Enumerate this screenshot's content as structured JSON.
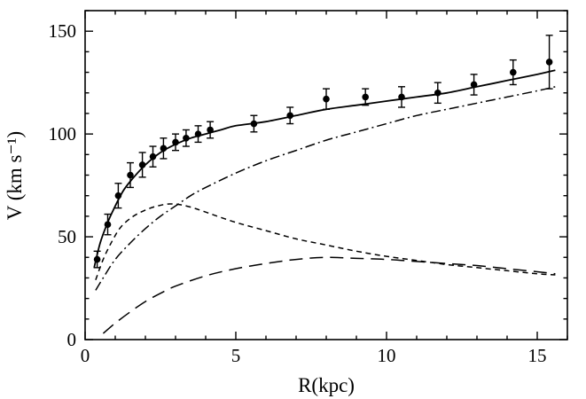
{
  "figure": {
    "description": "Galaxy rotation curve: observed velocities with error bars and model decomposition"
  },
  "chart_data": {
    "type": "line",
    "title": "",
    "xlabel": "R(kpc)",
    "ylabel": "V (km s⁻¹)",
    "xlim": [
      0,
      16
    ],
    "ylim": [
      0,
      160
    ],
    "xticks": [
      0,
      5,
      10,
      15
    ],
    "yticks": [
      0,
      50,
      100,
      150
    ],
    "x_minor_step": 1,
    "y_minor_step": 10,
    "grid": false,
    "legend": "none",
    "observed": {
      "name": "observed rotation velocities",
      "marker": "filled-circle",
      "x": [
        0.4,
        0.75,
        1.1,
        1.5,
        1.9,
        2.25,
        2.6,
        3.0,
        3.35,
        3.75,
        4.15,
        5.6,
        6.8,
        8.0,
        9.3,
        10.5,
        11.7,
        12.9,
        14.2,
        15.4
      ],
      "y": [
        39,
        56,
        70,
        80,
        85,
        89,
        93,
        96,
        98,
        100,
        102,
        105,
        109,
        117,
        118,
        118,
        120,
        124,
        130,
        135
      ],
      "yerr": [
        4,
        5,
        6,
        6,
        6,
        5,
        5,
        4,
        4,
        4,
        4,
        4,
        4,
        5,
        4,
        5,
        5,
        5,
        6,
        13
      ]
    },
    "series": [
      {
        "name": "total model fit",
        "style": "solid",
        "x": [
          0.3,
          0.5,
          0.75,
          1.0,
          1.25,
          1.5,
          2.0,
          2.5,
          3.0,
          3.5,
          4.0,
          4.5,
          5.0,
          6.0,
          7.0,
          8.0,
          9.0,
          10.0,
          11.0,
          12.0,
          13.0,
          14.0,
          15.0,
          15.6
        ],
        "y": [
          35,
          47,
          57,
          65,
          72,
          77,
          85,
          91,
          95,
          98,
          100,
          102,
          104,
          106,
          109,
          112,
          114,
          116,
          118,
          120,
          123,
          126,
          129,
          131
        ]
      },
      {
        "name": "dash-dot component (rising, halo-like)",
        "style": "dash-dot",
        "x": [
          0.35,
          0.6,
          1.0,
          1.5,
          2.0,
          2.5,
          3.0,
          3.5,
          4.0,
          5.0,
          6.0,
          7.0,
          8.0,
          9.0,
          10.0,
          11.0,
          12.0,
          13.0,
          14.0,
          15.0,
          15.6
        ],
        "y": [
          24,
          30,
          39,
          47,
          54,
          60,
          65,
          70,
          74,
          81,
          87,
          92,
          97,
          101,
          105,
          109,
          112,
          115,
          118,
          121,
          123
        ]
      },
      {
        "name": "short-dash component (peaks near 3 kpc)",
        "style": "short-dash",
        "x": [
          0.35,
          0.6,
          0.9,
          1.2,
          1.6,
          2.0,
          2.4,
          2.8,
          3.2,
          3.6,
          4.0,
          5.0,
          6.0,
          7.0,
          8.0,
          9.0,
          10.0,
          11.0,
          12.0,
          13.0,
          14.0,
          15.0,
          15.6
        ],
        "y": [
          29,
          39,
          48,
          55,
          60,
          63,
          65,
          66,
          65.5,
          64,
          62,
          57,
          53,
          49,
          46,
          43,
          40.5,
          38.5,
          36.5,
          35,
          33.5,
          32,
          31.5
        ]
      },
      {
        "name": "long-dash component (peaks near 8 kpc)",
        "style": "long-dash",
        "x": [
          0.6,
          1.0,
          1.5,
          2.0,
          2.5,
          3.0,
          4.0,
          5.0,
          6.0,
          7.0,
          8.0,
          9.0,
          10.0,
          11.0,
          12.0,
          13.0,
          14.0,
          15.0,
          15.6
        ],
        "y": [
          3,
          8,
          13.5,
          18.5,
          22.5,
          26,
          31,
          34.5,
          37,
          39,
          40,
          39.5,
          39,
          38,
          37,
          36,
          34.5,
          33,
          32
        ]
      }
    ],
    "colors": {
      "axis": "#000000",
      "data": "#000000",
      "background": "#ffffff"
    }
  }
}
